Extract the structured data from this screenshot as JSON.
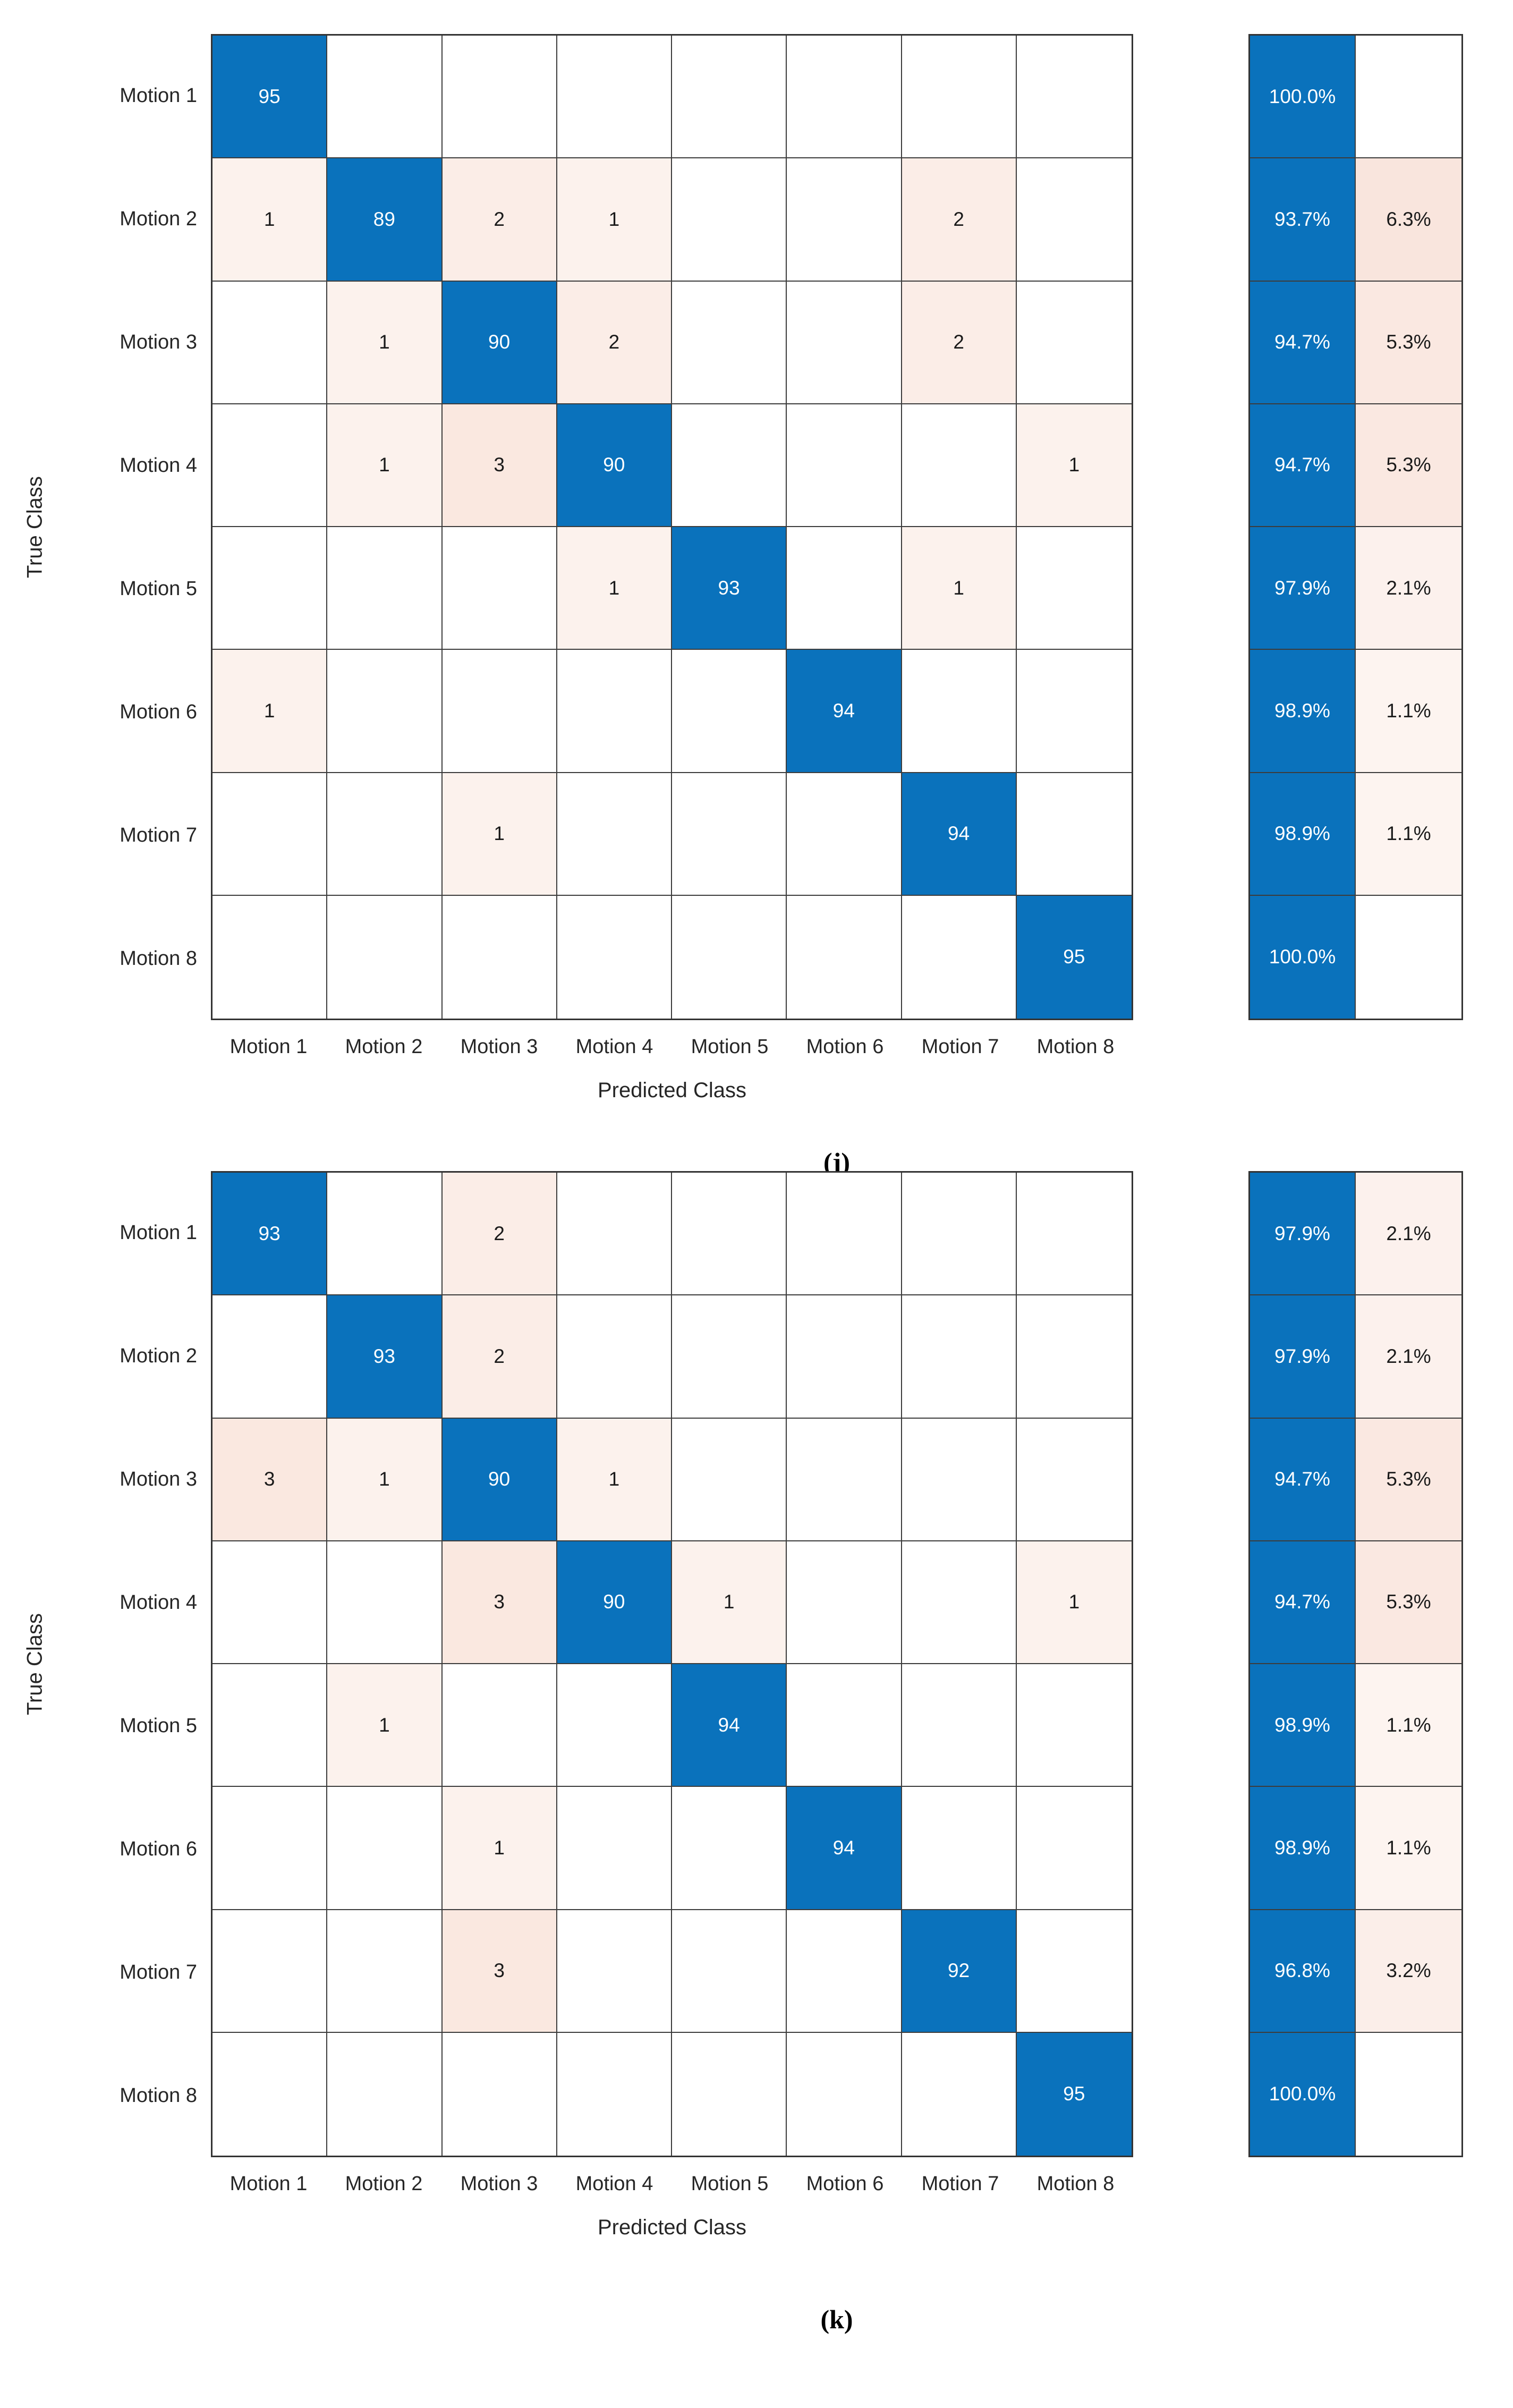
{
  "colors": {
    "diagonal_blue": "#0A72BC",
    "off_diagonal_base": "#D95319",
    "grid_line": "#3C3C3C",
    "outer_border": "#333333",
    "label_text": "#262626",
    "diagonal_text": "#FFFFFF"
  },
  "chart_data": [
    {
      "type": "heatmap",
      "id": "j",
      "caption": "(j)",
      "xlabel": "Predicted Class",
      "ylabel": "True Class",
      "categories": [
        "Motion 1",
        "Motion 2",
        "Motion 3",
        "Motion 4",
        "Motion 5",
        "Motion 6",
        "Motion 7",
        "Motion 8"
      ],
      "matrix": [
        [
          95,
          0,
          0,
          0,
          0,
          0,
          0,
          0
        ],
        [
          1,
          89,
          2,
          1,
          0,
          0,
          2,
          0
        ],
        [
          0,
          1,
          90,
          2,
          0,
          0,
          2,
          0
        ],
        [
          0,
          1,
          3,
          90,
          0,
          0,
          0,
          1
        ],
        [
          0,
          0,
          0,
          1,
          93,
          0,
          1,
          0
        ],
        [
          1,
          0,
          0,
          0,
          0,
          94,
          0,
          0
        ],
        [
          0,
          0,
          1,
          0,
          0,
          0,
          94,
          0
        ],
        [
          0,
          0,
          0,
          0,
          0,
          0,
          0,
          95
        ]
      ],
      "row_summary_correct": [
        "100.0%",
        "93.7%",
        "94.7%",
        "94.7%",
        "97.9%",
        "98.9%",
        "98.9%",
        "100.0%"
      ],
      "row_summary_error": [
        "",
        "6.3%",
        "5.3%",
        "5.3%",
        "2.1%",
        "1.1%",
        "1.1%",
        ""
      ]
    },
    {
      "type": "heatmap",
      "id": "k",
      "caption": "(k)",
      "xlabel": "Predicted Class",
      "ylabel": "True Class",
      "categories": [
        "Motion 1",
        "Motion 2",
        "Motion 3",
        "Motion 4",
        "Motion 5",
        "Motion 6",
        "Motion 7",
        "Motion 8"
      ],
      "matrix": [
        [
          93,
          0,
          2,
          0,
          0,
          0,
          0,
          0
        ],
        [
          0,
          93,
          2,
          0,
          0,
          0,
          0,
          0
        ],
        [
          3,
          1,
          90,
          1,
          0,
          0,
          0,
          0
        ],
        [
          0,
          0,
          3,
          90,
          1,
          0,
          0,
          1
        ],
        [
          0,
          1,
          0,
          0,
          94,
          0,
          0,
          0
        ],
        [
          0,
          0,
          1,
          0,
          0,
          94,
          0,
          0
        ],
        [
          0,
          0,
          3,
          0,
          0,
          0,
          92,
          0
        ],
        [
          0,
          0,
          0,
          0,
          0,
          0,
          0,
          95
        ]
      ],
      "row_summary_correct": [
        "97.9%",
        "97.9%",
        "94.7%",
        "94.7%",
        "98.9%",
        "98.9%",
        "96.8%",
        "100.0%"
      ],
      "row_summary_error": [
        "2.1%",
        "2.1%",
        "5.3%",
        "5.3%",
        "1.1%",
        "1.1%",
        "3.2%",
        ""
      ]
    }
  ]
}
